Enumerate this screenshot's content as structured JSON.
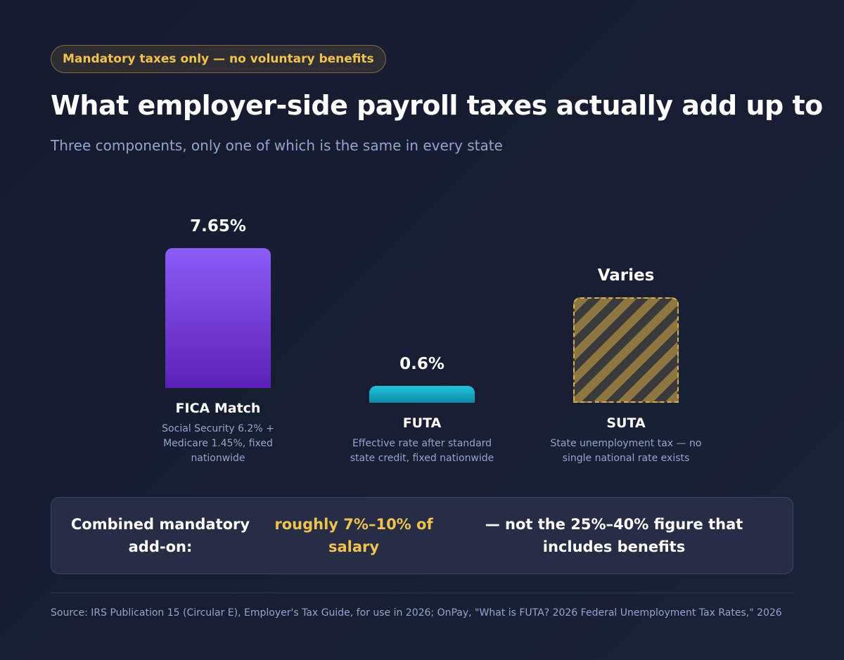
{
  "badge": "Mandatory taxes only — no voluntary benefits",
  "title": "What employer-side payroll taxes actually add up to",
  "subtitle": "Three components, only one of which is the same in every state",
  "chart_data": {
    "type": "bar",
    "categories": [
      "FICA Match",
      "FUTA",
      "SUTA"
    ],
    "values": [
      7.65,
      0.6,
      null
    ],
    "value_labels": [
      "7.65%",
      "0.6%",
      "Varies"
    ],
    "descriptions": [
      "Social Security 6.2% + Medicare 1.45%, fixed nationwide",
      "Effective rate after standard state credit, fixed nationwide",
      "State unemployment tax — no single national rate exists"
    ],
    "ylim": [
      0,
      7.65
    ],
    "colors": [
      "#7c3aed",
      "#1fb6d2",
      "#d9ae4e"
    ],
    "grid": false
  },
  "summary": {
    "lead": "Combined mandatory add-on:",
    "highlight": "roughly 7%–10% of salary",
    "tail": "— not the 25%–40% figure that includes benefits"
  },
  "source": "Source: IRS Publication 15 (Circular E), Employer's Tax Guide, for use in 2026; OnPay, \"What is FUTA? 2026 Federal Unemployment Tax Rates,\" 2026"
}
